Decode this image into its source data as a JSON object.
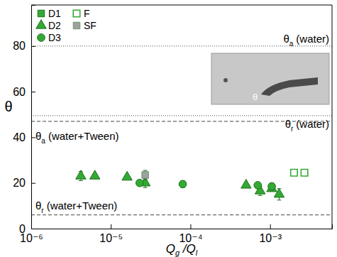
{
  "chart_data": {
    "type": "scatter",
    "log": "x",
    "xlim": [
      1e-06,
      0.006
    ],
    "ylim": [
      0,
      98
    ],
    "xticks": [
      {
        "value": 1e-06,
        "label": "10⁻⁶"
      },
      {
        "value": 1e-05,
        "label": "10⁻⁵"
      },
      {
        "value": 0.0001,
        "label": "10⁻⁴"
      },
      {
        "value": 0.001,
        "label": "10⁻³"
      }
    ],
    "yticks": [
      0,
      20,
      40,
      60,
      80
    ],
    "xlabel": [
      "Q",
      "g",
      " /Q",
      "l"
    ],
    "ylabel": "θ",
    "legend": "upper left",
    "series": [
      {
        "name": "D1",
        "color": "#33aa33",
        "marker": "square",
        "x": [],
        "values": [],
        "errors": []
      },
      {
        "name": "D2",
        "color": "#33aa33",
        "marker": "triangle",
        "x": [
          4.2e-06,
          6.3e-06,
          1.6e-05,
          2.7e-05,
          0.0005,
          0.00075,
          0.00105,
          0.0013
        ],
        "values": [
          23,
          23,
          22.5,
          20,
          19,
          16.5,
          17.5,
          15
        ],
        "errors": [
          2,
          null,
          null,
          2,
          null,
          2,
          null,
          2.5
        ]
      },
      {
        "name": "D3",
        "color": "#33aa33",
        "marker": "circle",
        "x": [
          2.3e-05,
          8e-05,
          0.0007,
          0.00105
        ],
        "values": [
          20,
          19.5,
          19,
          18.5
        ],
        "errors": [
          null,
          1.5,
          null,
          1.5
        ]
      },
      {
        "name": "F",
        "color": "#33aa33",
        "marker": "square-open",
        "x": [
          0.002,
          0.0027
        ],
        "values": [
          24.5,
          24.5
        ],
        "errors": [
          null,
          null
        ]
      },
      {
        "name": "SF",
        "color": "#a0a0a0",
        "marker": "square",
        "x": [
          2.7e-05
        ],
        "values": [
          23.5
        ],
        "errors": [
          2
        ]
      }
    ],
    "annotations": [
      {
        "y": 80,
        "text": "θ",
        "subscript": "a",
        "suffix": "(water)",
        "line_style": "dotted"
      },
      {
        "y": 49.5,
        "text": "θ",
        "subscript": "r",
        "suffix": "(water)",
        "line_style": "dotted"
      },
      {
        "y": 47,
        "text": "θ",
        "subscript": "a",
        "suffix": "(water+Tween)",
        "line_style": "dashed"
      },
      {
        "y": 6,
        "text": "θ",
        "subscript": "r",
        "suffix": "(water+Tween)",
        "line_style": "dashed"
      }
    ],
    "inset_label": "θ"
  }
}
